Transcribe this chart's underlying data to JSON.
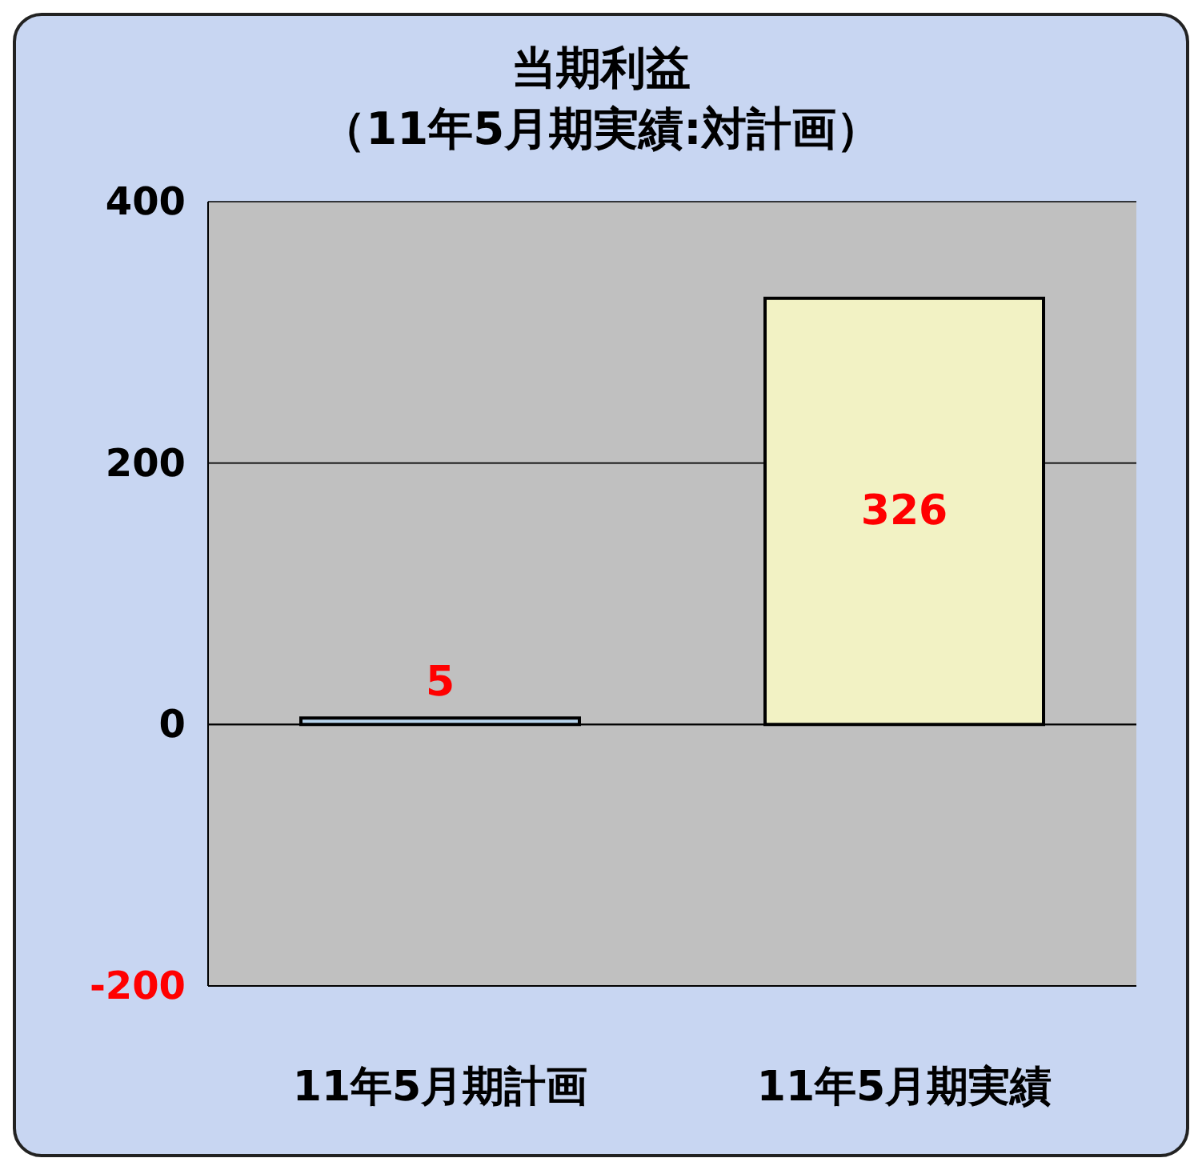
{
  "chart_data": {
    "type": "bar",
    "title": "当期利益",
    "subtitle": "（11年5月期実績:対計画）",
    "categories": [
      "11年5月期計画",
      "11年5月期実績"
    ],
    "values": [
      5,
      326
    ],
    "colors": [
      "#b8d4ec",
      "#f2f2c4"
    ],
    "ylim": [
      -200,
      400
    ],
    "yticks": [
      -200,
      0,
      200,
      400
    ],
    "grid": "y",
    "data_labels": true
  }
}
